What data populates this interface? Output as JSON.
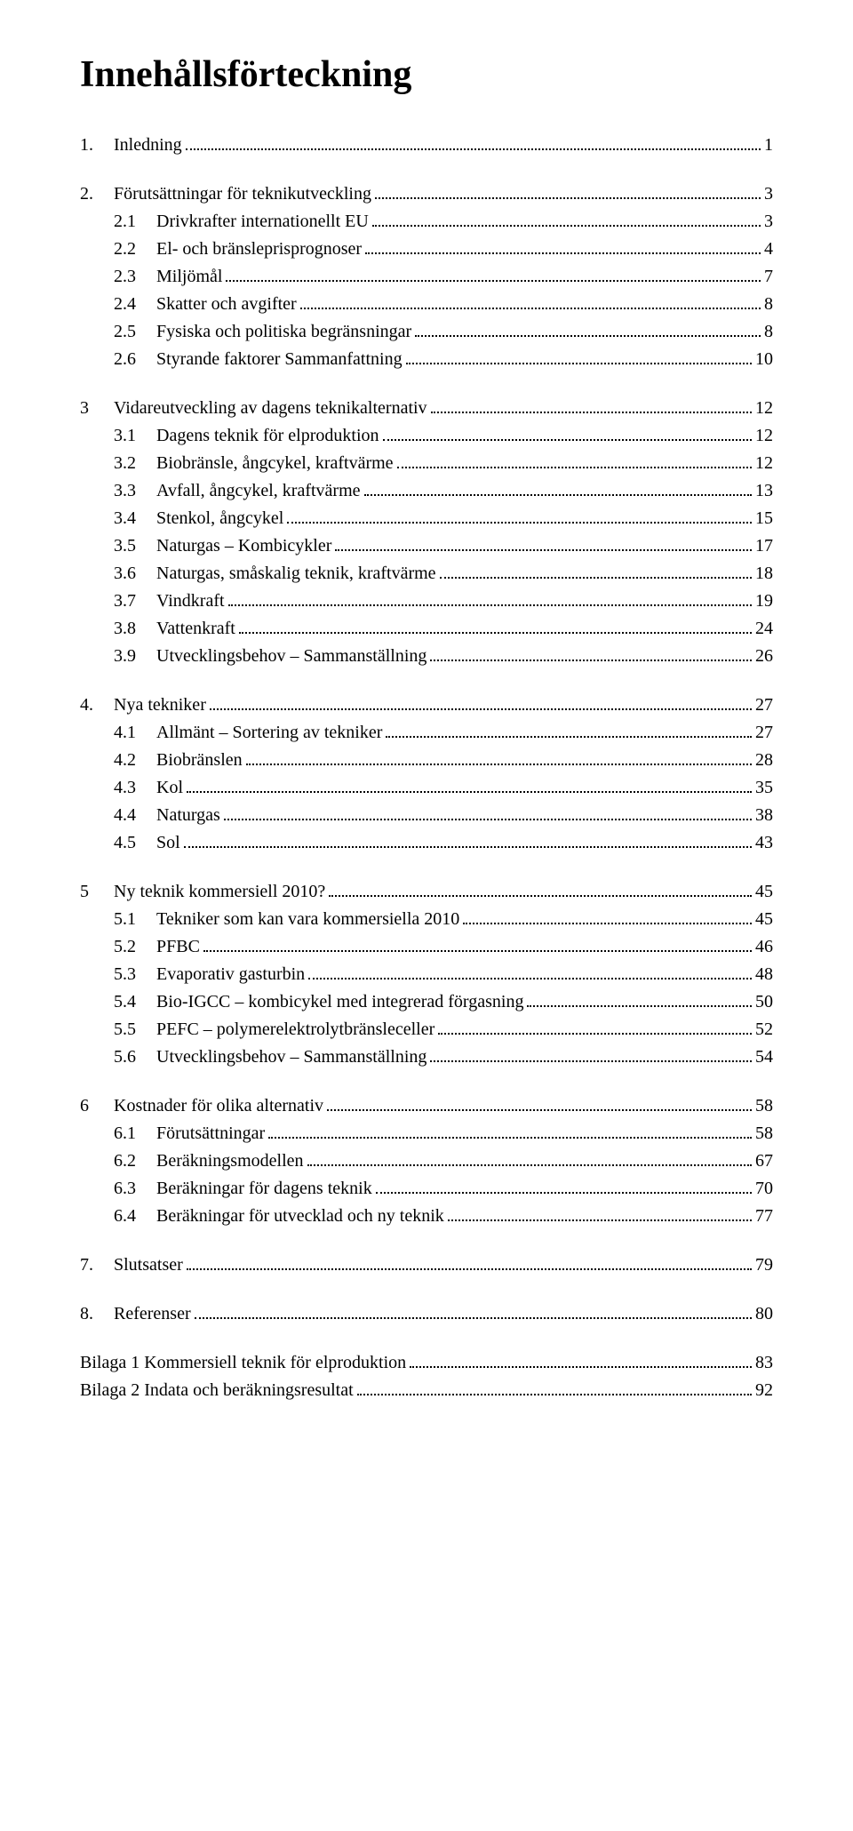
{
  "title": "Innehållsförteckning",
  "toc": [
    {
      "level": 1,
      "num": "1.",
      "label": "Inledning",
      "page": "1"
    },
    {
      "level": 1,
      "num": "2.",
      "label": "Förutsättningar för teknikutveckling",
      "page": "3"
    },
    {
      "level": 2,
      "num": "2.1",
      "label": "Drivkrafter internationellt EU",
      "page": "3"
    },
    {
      "level": 2,
      "num": "2.2",
      "label": "El- och bränsleprisprognoser",
      "page": "4"
    },
    {
      "level": 2,
      "num": "2.3",
      "label": "Miljömål",
      "page": "7"
    },
    {
      "level": 2,
      "num": "2.4",
      "label": "Skatter och avgifter",
      "page": "8"
    },
    {
      "level": 2,
      "num": "2.5",
      "label": "Fysiska och politiska begränsningar",
      "page": "8"
    },
    {
      "level": 2,
      "num": "2.6",
      "label": "Styrande faktorer Sammanfattning",
      "page": "10"
    },
    {
      "level": 1,
      "num": "3",
      "label": "Vidareutveckling av dagens teknikalternativ",
      "page": "12"
    },
    {
      "level": 2,
      "num": "3.1",
      "label": "Dagens teknik för elproduktion",
      "page": "12"
    },
    {
      "level": 2,
      "num": "3.2",
      "label": "Biobränsle, ångcykel, kraftvärme",
      "page": "12"
    },
    {
      "level": 2,
      "num": "3.3",
      "label": "Avfall, ångcykel, kraftvärme",
      "page": "13"
    },
    {
      "level": 2,
      "num": "3.4",
      "label": "Stenkol, ångcykel",
      "page": "15"
    },
    {
      "level": 2,
      "num": "3.5",
      "label": "Naturgas – Kombicykler",
      "page": "17"
    },
    {
      "level": 2,
      "num": "3.6",
      "label": "Naturgas, småskalig teknik, kraftvärme",
      "page": "18"
    },
    {
      "level": 2,
      "num": "3.7",
      "label": "Vindkraft",
      "page": "19"
    },
    {
      "level": 2,
      "num": "3.8",
      "label": "Vattenkraft",
      "page": "24"
    },
    {
      "level": 2,
      "num": "3.9",
      "label": "Utvecklingsbehov – Sammanställning",
      "page": "26"
    },
    {
      "level": 1,
      "num": "4.",
      "label": "Nya tekniker",
      "page": "27"
    },
    {
      "level": 2,
      "num": "4.1",
      "label": "Allmänt – Sortering av tekniker",
      "page": "27"
    },
    {
      "level": 2,
      "num": "4.2",
      "label": "Biobränslen",
      "page": "28"
    },
    {
      "level": 2,
      "num": "4.3",
      "label": "Kol",
      "page": "35"
    },
    {
      "level": 2,
      "num": "4.4",
      "label": "Naturgas",
      "page": "38"
    },
    {
      "level": 2,
      "num": "4.5",
      "label": "Sol",
      "page": "43"
    },
    {
      "level": 1,
      "num": "5",
      "label": "Ny teknik kommersiell 2010?",
      "page": "45"
    },
    {
      "level": 2,
      "num": "5.1",
      "label": "Tekniker som kan vara kommersiella 2010",
      "page": "45"
    },
    {
      "level": 2,
      "num": "5.2",
      "label": "PFBC",
      "page": "46"
    },
    {
      "level": 2,
      "num": "5.3",
      "label": "Evaporativ gasturbin",
      "page": "48"
    },
    {
      "level": 2,
      "num": "5.4",
      "label": "Bio-IGCC – kombicykel med integrerad förgasning",
      "page": "50"
    },
    {
      "level": 2,
      "num": "5.5",
      "label": "PEFC – polymerelektrolytbränsleceller",
      "page": "52"
    },
    {
      "level": 2,
      "num": "5.6",
      "label": "Utvecklingsbehov – Sammanställning",
      "page": "54"
    },
    {
      "level": 1,
      "num": "6",
      "label": "Kostnader för olika alternativ",
      "page": "58"
    },
    {
      "level": 2,
      "num": "6.1",
      "label": "Förutsättningar",
      "page": "58"
    },
    {
      "level": 2,
      "num": "6.2",
      "label": "Beräkningsmodellen",
      "page": "67"
    },
    {
      "level": 2,
      "num": "6.3",
      "label": "Beräkningar för dagens teknik",
      "page": "70"
    },
    {
      "level": 2,
      "num": "6.4",
      "label": "Beräkningar för utvecklad och ny teknik",
      "page": "77"
    },
    {
      "level": 1,
      "num": "7.",
      "label": "Slutsatser",
      "page": "79"
    },
    {
      "level": 1,
      "num": "8.",
      "label": "Referenser",
      "page": "80"
    },
    {
      "level": 1,
      "num": "",
      "label": "Bilaga 1 Kommersiell teknik för elproduktion",
      "page": "83"
    },
    {
      "level": 2,
      "num": "",
      "label": "Bilaga 2 Indata och beräkningsresultat",
      "page": "92",
      "noindent": true
    }
  ]
}
